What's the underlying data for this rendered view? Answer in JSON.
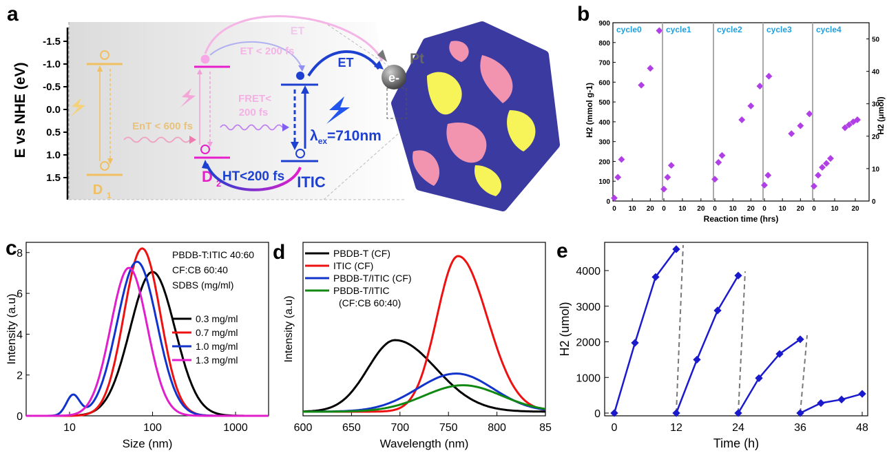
{
  "panel_labels": {
    "a": "a",
    "b": "b",
    "c": "c",
    "d": "d",
    "e": "e"
  },
  "colors": {
    "d1": "#f0c060",
    "d2": "#e61ecb",
    "itic": "#1e40d0",
    "particle": "#3a3aa0",
    "yellow": "#f7f45a",
    "pink": "#f294b0",
    "purple": "#b040e6",
    "blue_pts": "#1a1acc"
  },
  "diagram": {
    "ylabel": "E vs NHE (eV)",
    "yticks": [
      "-1.5",
      "-1.0",
      "-0.5",
      "0.0",
      "0.5",
      "1.0",
      "1.5"
    ],
    "d1": "D",
    "d1_sub": "1",
    "d2": "D",
    "d2_sub": "2",
    "itic": "ITIC",
    "ent": "EnT < 600 fs",
    "fret1": "FRET<",
    "fret2": "200 fs",
    "et_top": "ET",
    "et_fast": "ET < 200 fs",
    "et_right": "ET",
    "ht": "HT<200 fs",
    "lambda_pre": "λ",
    "lambda_sub": "ex",
    "lambda_post": "=710nm",
    "pt": "Pt",
    "electron": "e-"
  },
  "chart_data": [
    {
      "id": "b",
      "type": "scatter",
      "xlabel": "Reaction time (hrs)",
      "ylabel": "H2 (mmol g-1)",
      "ylabel_right": "H2 (μmol)",
      "ylim": [
        0,
        900
      ],
      "yticks": [
        0,
        100,
        200,
        300,
        400,
        500,
        600,
        700,
        800,
        900
      ],
      "yticks_right": [
        0,
        10,
        20,
        30,
        40,
        50
      ],
      "xticks": [
        0,
        10,
        20
      ],
      "grid": false,
      "cycles": [
        {
          "name": "cycle0",
          "x": [
            0,
            2,
            4,
            6,
            15,
            20,
            25
          ],
          "y": [
            15,
            120,
            210,
            null,
            585,
            670,
            860
          ]
        },
        {
          "name": "cycle1",
          "x": [
            0,
            2,
            4,
            6
          ],
          "y": [
            60,
            120,
            180,
            null
          ]
        },
        {
          "name": "cycle2",
          "x": [
            0,
            2,
            4,
            6,
            15,
            20,
            25,
            30
          ],
          "y": [
            110,
            195,
            230,
            null,
            410,
            480,
            580,
            630
          ]
        },
        {
          "name": "cycle3",
          "x": [
            0,
            2,
            4,
            15,
            20,
            25
          ],
          "y": [
            80,
            130,
            null,
            340,
            380,
            440
          ]
        },
        {
          "name": "cycle4",
          "x": [
            0,
            2,
            4,
            6,
            8,
            15,
            17,
            19,
            21
          ],
          "y": [
            75,
            130,
            170,
            190,
            215,
            370,
            385,
            400,
            410
          ]
        }
      ]
    },
    {
      "id": "c",
      "type": "line",
      "xlabel": "Size (nm)",
      "ylabel": "Intensity (a.u)",
      "xscale": "log",
      "xlim": [
        3,
        2500
      ],
      "ylim": [
        0,
        8.5
      ],
      "yticks": [
        0,
        2,
        4,
        6,
        8
      ],
      "xticks": [
        "10",
        "100",
        "1000"
      ],
      "annotation": [
        "PBDB-T:ITIC 40:60",
        "CF:CB 60:40",
        "SDBS (mg/ml)"
      ],
      "series": [
        {
          "name": "0.3 mg/ml",
          "color": "#000000",
          "peak": 100,
          "height": 7.05,
          "width": 0.27
        },
        {
          "name": "0.7 mg/ml",
          "color": "#ee1111",
          "peak": 75,
          "height": 8.2,
          "width": 0.22
        },
        {
          "name": "1.0 mg/ml",
          "color": "#1133cc",
          "peak": 65,
          "height": 7.55,
          "width": 0.24,
          "shoulder": [
            11,
            1.0
          ]
        },
        {
          "name": "1.3 mg/ml",
          "color": "#e01ecb",
          "peak": 52,
          "height": 7.25,
          "width": 0.22
        }
      ]
    },
    {
      "id": "d",
      "type": "line",
      "xlabel": "Wavelength (nm)",
      "ylabel": "Intensity (a.u)",
      "xlim": [
        600,
        850
      ],
      "xticks": [
        "600",
        "650",
        "700",
        "750",
        "800",
        "85"
      ],
      "series": [
        {
          "name": "PBDB-T (CF)",
          "color": "#000000",
          "peak": 695,
          "height": 0.46,
          "sigL": 28,
          "sigR": 42
        },
        {
          "name": "ITIC (CF)",
          "color": "#ee1111",
          "peak": 760,
          "height": 1.0,
          "sigL": 22,
          "sigR": 30
        },
        {
          "name": "PBDB-T/ITIC (CF)",
          "color": "#1133cc",
          "peak": 758,
          "height": 0.245,
          "sigL": 40,
          "sigR": 38
        },
        {
          "name": "PBDB-T/ITIC",
          "name2": "(CF:CB 60:40)",
          "color": "#118811",
          "peak": 765,
          "height": 0.17,
          "sigL": 40,
          "sigR": 40
        }
      ]
    },
    {
      "id": "e",
      "type": "line",
      "xlabel": "Time (h)",
      "ylabel": "H2 (umol)",
      "xlim": [
        0,
        48
      ],
      "ylim": [
        0,
        4700
      ],
      "xticks": [
        "0",
        "12",
        "24",
        "36",
        "48"
      ],
      "yticks": [
        "0",
        "1000",
        "2000",
        "3000",
        "4000"
      ],
      "cycles": [
        {
          "x": [
            0,
            4,
            8,
            12
          ],
          "y": [
            0,
            1970,
            3820,
            4600
          ]
        },
        {
          "x": [
            12,
            16,
            20,
            24
          ],
          "y": [
            0,
            1500,
            2880,
            3860
          ]
        },
        {
          "x": [
            24,
            28,
            32,
            36
          ],
          "y": [
            0,
            980,
            1660,
            2070
          ]
        },
        {
          "x": [
            36,
            40,
            44,
            48
          ],
          "y": [
            0,
            280,
            380,
            540
          ]
        }
      ],
      "dividers": [
        [
          12,
          4600
        ],
        [
          24,
          3860
        ],
        [
          36,
          2070
        ]
      ]
    }
  ]
}
